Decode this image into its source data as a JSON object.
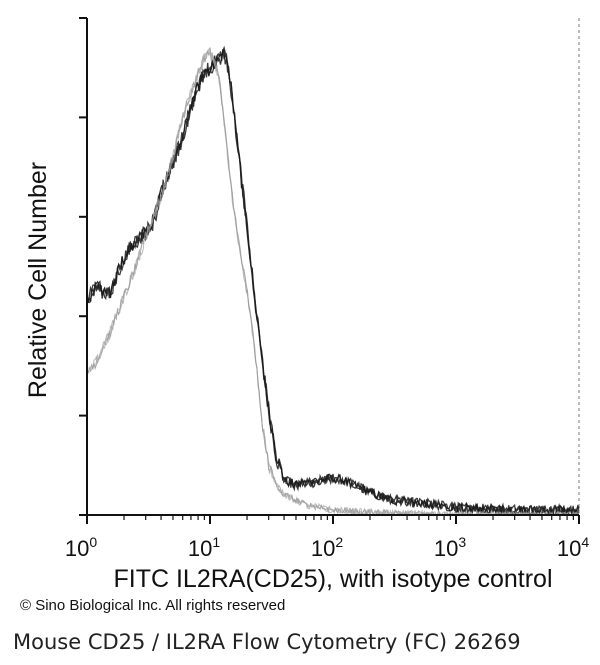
{
  "chart_data": {
    "type": "line",
    "xlabel": "FITC IL2RA(CD25), with isotype control",
    "ylabel": "Relative Cell Number",
    "xscale": "log",
    "xlim": [
      1,
      10000
    ],
    "ylim": [
      0,
      100
    ],
    "x_ticks": [
      {
        "value": 1,
        "base": "10",
        "exp": "0"
      },
      {
        "value": 10,
        "base": "10",
        "exp": "1"
      },
      {
        "value": 100,
        "base": "10",
        "exp": "2"
      },
      {
        "value": 1000,
        "base": "10",
        "exp": "3"
      },
      {
        "value": 10000,
        "base": "10",
        "exp": "4"
      }
    ],
    "y_ticks": [
      0,
      20,
      40,
      60,
      80,
      100
    ],
    "grid": false,
    "series": [
      {
        "color": "#1a1a1a",
        "x": [
          1,
          1.2,
          1.5,
          1.8,
          2,
          2.5,
          3,
          3.5,
          4,
          5,
          6,
          7,
          8,
          9,
          10,
          11,
          12,
          13,
          14,
          15,
          17,
          20,
          23,
          26,
          30,
          35,
          40,
          50,
          60,
          70,
          80,
          100,
          120,
          150,
          200,
          300,
          500,
          1000,
          2000,
          5000,
          10000
        ],
        "y": [
          43,
          46,
          44,
          49,
          52,
          55,
          57,
          59,
          65,
          71,
          76,
          82,
          86,
          89,
          90,
          91,
          92,
          93,
          90,
          85,
          73,
          58,
          44,
          33,
          21,
          11,
          7,
          6,
          6.5,
          6.5,
          7,
          7.5,
          7,
          6,
          4.5,
          3,
          2.5,
          1.5,
          1.2,
          1,
          1
        ]
      },
      {
        "color": "#9a9a9a",
        "x": [
          1,
          1.2,
          1.5,
          2,
          2.5,
          3,
          4,
          5,
          6,
          7,
          8,
          9,
          10,
          11,
          12,
          13,
          14,
          15,
          17,
          20,
          23,
          26,
          30,
          35,
          40,
          50,
          60,
          80,
          100,
          200,
          1000,
          10000
        ],
        "y": [
          28,
          31,
          36,
          44,
          50,
          56,
          64,
          72,
          80,
          85,
          89,
          92,
          93,
          91,
          87,
          79,
          72,
          65,
          55,
          45,
          34,
          20,
          10,
          6,
          4,
          3,
          2,
          1.5,
          1,
          0.5,
          0,
          0
        ]
      }
    ]
  },
  "footer": {
    "copyright": "© Sino Biological Inc. All rights reserved",
    "caption": "Mouse CD25 / IL2RA Flow Cytometry (FC) 26269"
  }
}
